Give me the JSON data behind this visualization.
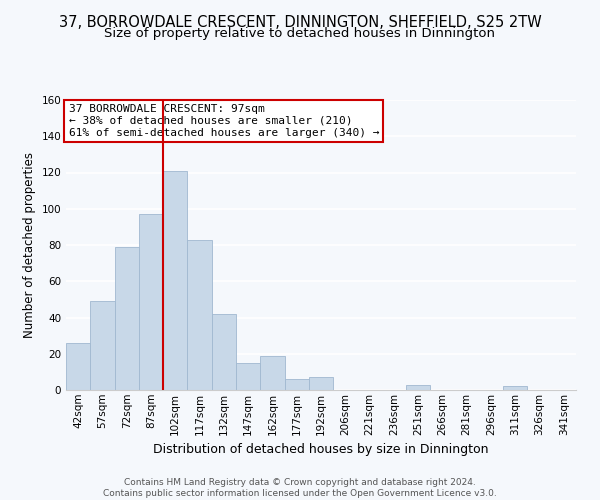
{
  "title": "37, BORROWDALE CRESCENT, DINNINGTON, SHEFFIELD, S25 2TW",
  "subtitle": "Size of property relative to detached houses in Dinnington",
  "xlabel": "Distribution of detached houses by size in Dinnington",
  "ylabel": "Number of detached properties",
  "bar_labels": [
    "42sqm",
    "57sqm",
    "72sqm",
    "87sqm",
    "102sqm",
    "117sqm",
    "132sqm",
    "147sqm",
    "162sqm",
    "177sqm",
    "192sqm",
    "206sqm",
    "221sqm",
    "236sqm",
    "251sqm",
    "266sqm",
    "281sqm",
    "296sqm",
    "311sqm",
    "326sqm",
    "341sqm"
  ],
  "bar_heights": [
    26,
    49,
    79,
    97,
    121,
    83,
    42,
    15,
    19,
    6,
    7,
    0,
    0,
    0,
    3,
    0,
    0,
    0,
    2,
    0,
    0
  ],
  "bar_color": "#c8d8e8",
  "bar_edge_color": "#a0b8d0",
  "vline_color": "#cc0000",
  "ylim": [
    0,
    160
  ],
  "yticks": [
    0,
    20,
    40,
    60,
    80,
    100,
    120,
    140,
    160
  ],
  "annotation_title": "37 BORROWDALE CRESCENT: 97sqm",
  "annotation_line1": "← 38% of detached houses are smaller (210)",
  "annotation_line2": "61% of semi-detached houses are larger (340) →",
  "footer_line1": "Contains HM Land Registry data © Crown copyright and database right 2024.",
  "footer_line2": "Contains public sector information licensed under the Open Government Licence v3.0.",
  "title_fontsize": 10.5,
  "subtitle_fontsize": 9.5,
  "xlabel_fontsize": 9,
  "ylabel_fontsize": 8.5,
  "tick_fontsize": 7.5,
  "annotation_fontsize": 8,
  "footer_fontsize": 6.5,
  "background_color": "#f5f8fc",
  "grid_color": "#ffffff",
  "spine_color": "#cccccc"
}
